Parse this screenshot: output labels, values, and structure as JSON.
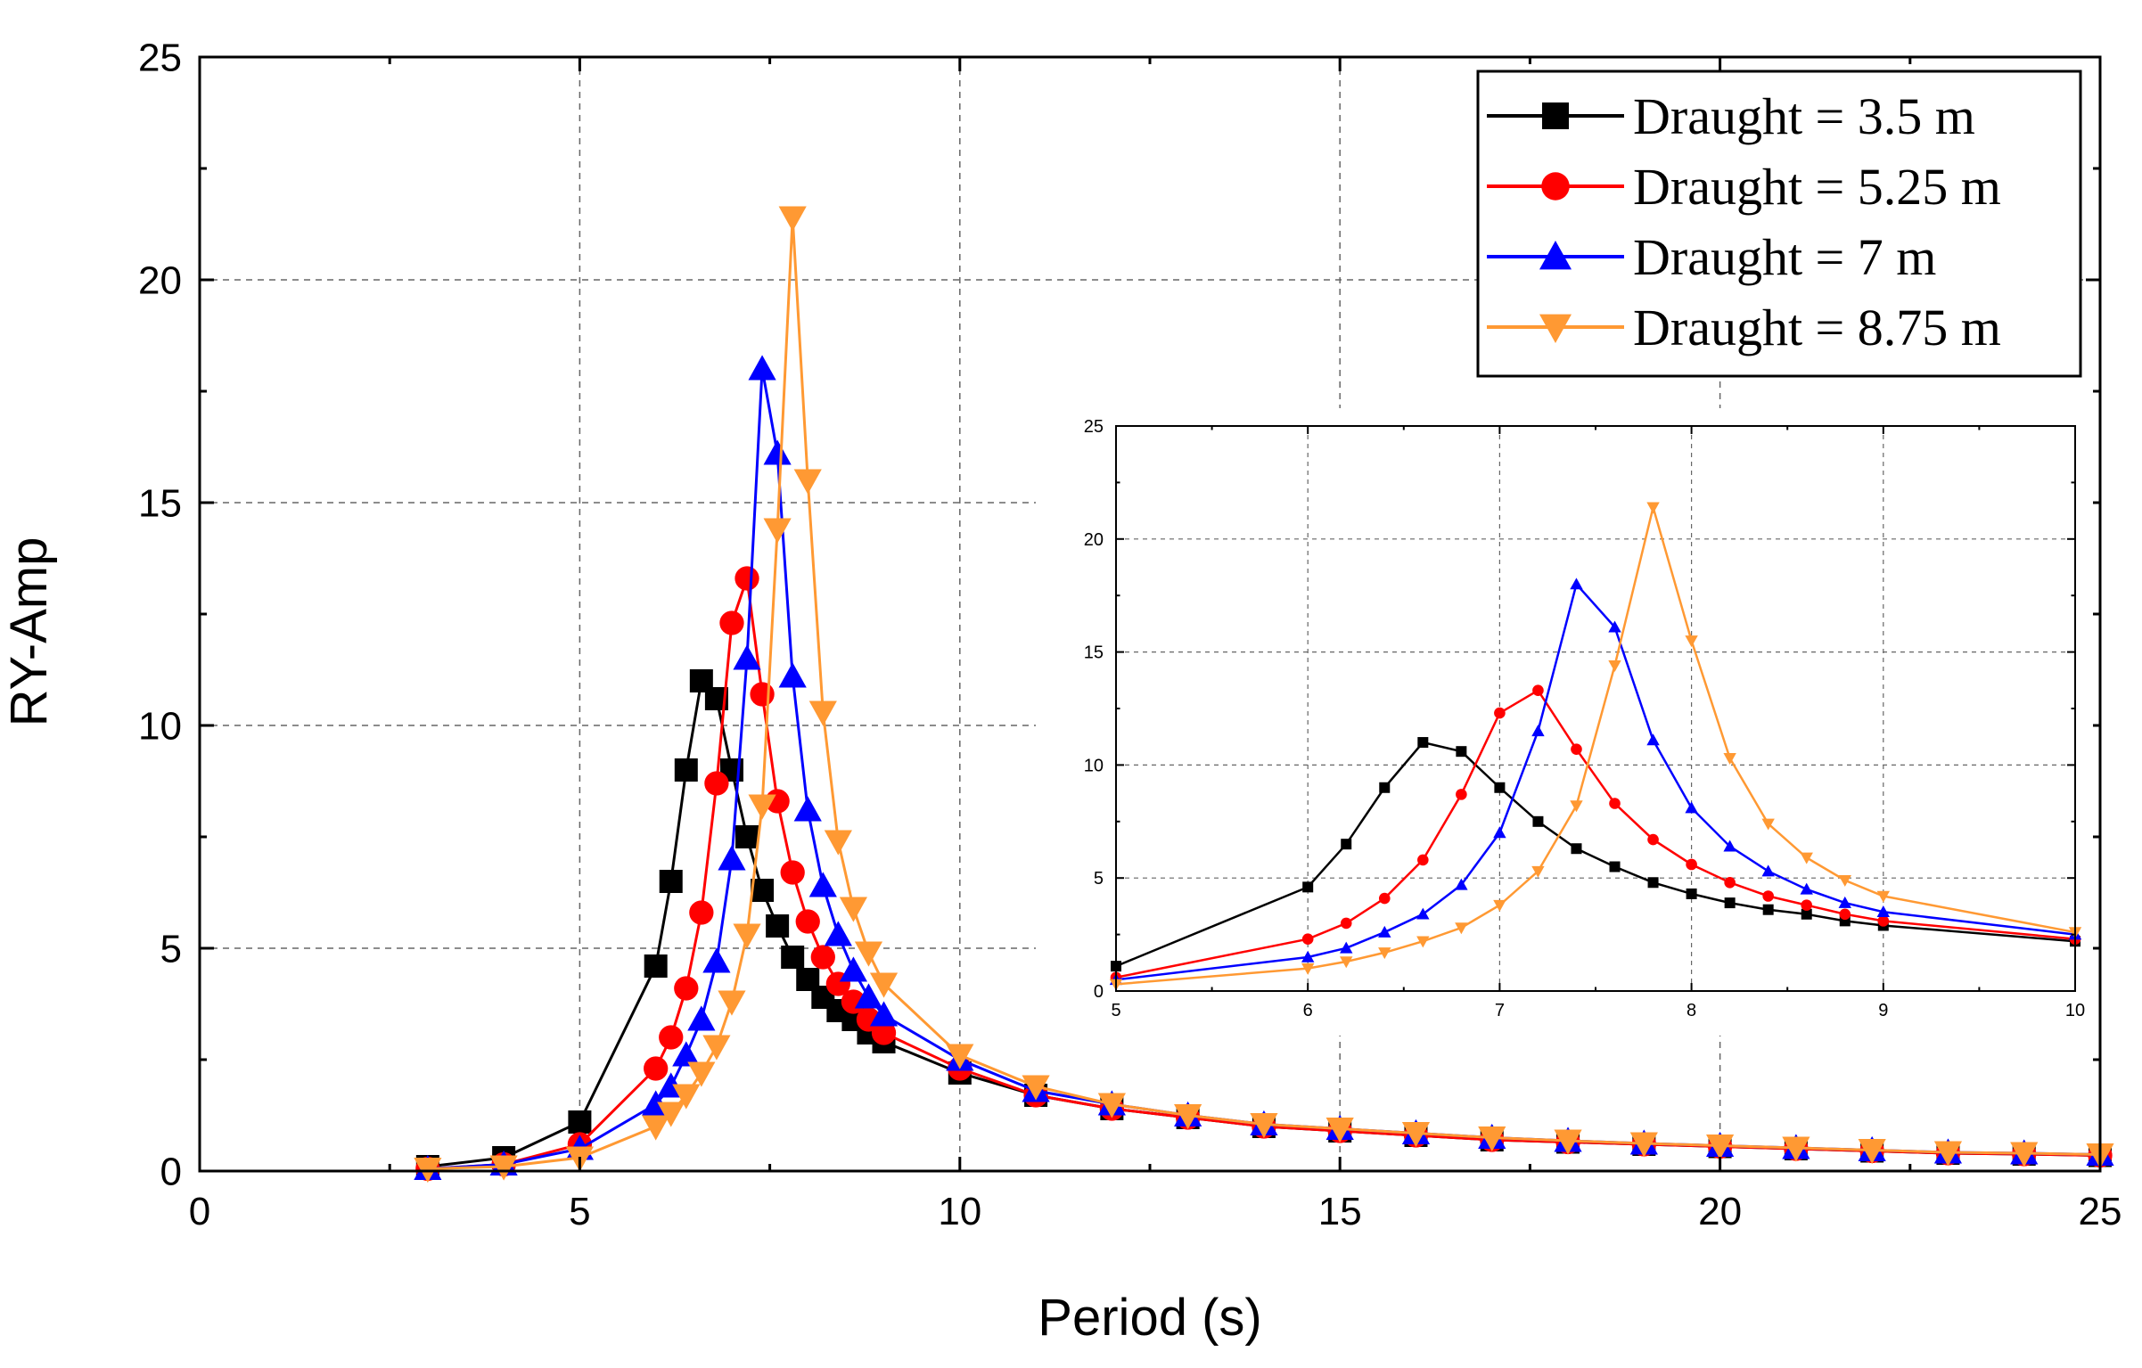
{
  "chart_data": [
    {
      "type": "line",
      "title": "",
      "xlabel": "Period (s)",
      "ylabel": "RY-Amp",
      "xlim": [
        0,
        25
      ],
      "ylim": [
        0,
        25
      ],
      "xticks": [
        0,
        5,
        10,
        15,
        20,
        25
      ],
      "yticks": [
        0,
        5,
        10,
        15,
        20,
        25
      ],
      "grid": true,
      "legend_position": "top-right",
      "series": [
        {
          "name": "Draught = 3.5 m",
          "color": "#000000",
          "marker": "square",
          "x": [
            3,
            4,
            5,
            6,
            6.2,
            6.4,
            6.6,
            6.8,
            7,
            7.2,
            7.4,
            7.6,
            7.8,
            8,
            8.2,
            8.4,
            8.6,
            8.8,
            9,
            10,
            11,
            12,
            13,
            14,
            15,
            16,
            17,
            18,
            19,
            20,
            21,
            22,
            23,
            24,
            25
          ],
          "y": [
            0.1,
            0.3,
            1.1,
            4.6,
            6.5,
            9.0,
            11.0,
            10.6,
            9.0,
            7.5,
            6.3,
            5.5,
            4.8,
            4.3,
            3.9,
            3.6,
            3.4,
            3.1,
            2.9,
            2.2,
            1.7,
            1.4,
            1.2,
            1.0,
            0.9,
            0.8,
            0.7,
            0.65,
            0.6,
            0.55,
            0.5,
            0.45,
            0.4,
            0.38,
            0.35
          ]
        },
        {
          "name": "Draught = 5.25 m",
          "color": "#ff0000",
          "marker": "circle",
          "x": [
            3,
            4,
            5,
            6,
            6.2,
            6.4,
            6.6,
            6.8,
            7,
            7.2,
            7.4,
            7.6,
            7.8,
            8,
            8.2,
            8.4,
            8.6,
            8.8,
            9,
            10,
            11,
            12,
            13,
            14,
            15,
            16,
            17,
            18,
            19,
            20,
            21,
            22,
            23,
            24,
            25
          ],
          "y": [
            0.05,
            0.15,
            0.6,
            2.3,
            3.0,
            4.1,
            5.8,
            8.7,
            12.3,
            13.3,
            10.7,
            8.3,
            6.7,
            5.6,
            4.8,
            4.2,
            3.8,
            3.4,
            3.1,
            2.3,
            1.7,
            1.4,
            1.2,
            1.0,
            0.9,
            0.8,
            0.7,
            0.65,
            0.6,
            0.55,
            0.5,
            0.45,
            0.4,
            0.38,
            0.35
          ]
        },
        {
          "name": "Draught = 7 m",
          "color": "#0000ff",
          "marker": "triangle-up",
          "x": [
            3,
            4,
            5,
            6,
            6.2,
            6.4,
            6.6,
            6.8,
            7,
            7.2,
            7.4,
            7.6,
            7.8,
            8,
            8.2,
            8.4,
            8.6,
            8.8,
            9,
            10,
            11,
            12,
            13,
            14,
            15,
            16,
            17,
            18,
            19,
            20,
            21,
            22,
            23,
            24,
            25
          ],
          "y": [
            0.05,
            0.15,
            0.5,
            1.5,
            1.9,
            2.6,
            3.4,
            4.7,
            7.0,
            11.5,
            18.0,
            16.1,
            11.1,
            8.1,
            6.4,
            5.3,
            4.5,
            3.9,
            3.5,
            2.5,
            1.8,
            1.5,
            1.25,
            1.05,
            0.95,
            0.85,
            0.75,
            0.68,
            0.62,
            0.57,
            0.52,
            0.47,
            0.42,
            0.4,
            0.37
          ]
        },
        {
          "name": "Draught = 8.75 m",
          "color": "#ff9933",
          "marker": "triangle-down",
          "x": [
            3,
            4,
            5,
            6,
            6.2,
            6.4,
            6.6,
            6.8,
            7,
            7.2,
            7.4,
            7.6,
            7.8,
            8,
            8.2,
            8.4,
            8.6,
            8.8,
            9,
            10,
            11,
            12,
            13,
            14,
            15,
            16,
            17,
            18,
            19,
            20,
            21,
            22,
            23,
            24,
            25
          ],
          "y": [
            0.05,
            0.1,
            0.3,
            1.0,
            1.3,
            1.7,
            2.2,
            2.8,
            3.8,
            5.3,
            8.2,
            14.4,
            21.4,
            15.5,
            10.3,
            7.4,
            5.9,
            4.9,
            4.2,
            2.6,
            1.9,
            1.5,
            1.25,
            1.05,
            0.95,
            0.85,
            0.75,
            0.68,
            0.62,
            0.57,
            0.52,
            0.47,
            0.42,
            0.4,
            0.37
          ]
        }
      ]
    },
    {
      "type": "line",
      "title": "",
      "xlabel": "",
      "ylabel": "",
      "xlim": [
        5,
        10
      ],
      "ylim": [
        0,
        25
      ],
      "xticks": [
        5,
        6,
        7,
        8,
        9,
        10
      ],
      "yticks": [
        0,
        5,
        10,
        15,
        20,
        25
      ],
      "grid": true,
      "legend_position": "none",
      "series_ref": "inset view of main chart series, period 5 to 10 s"
    }
  ]
}
